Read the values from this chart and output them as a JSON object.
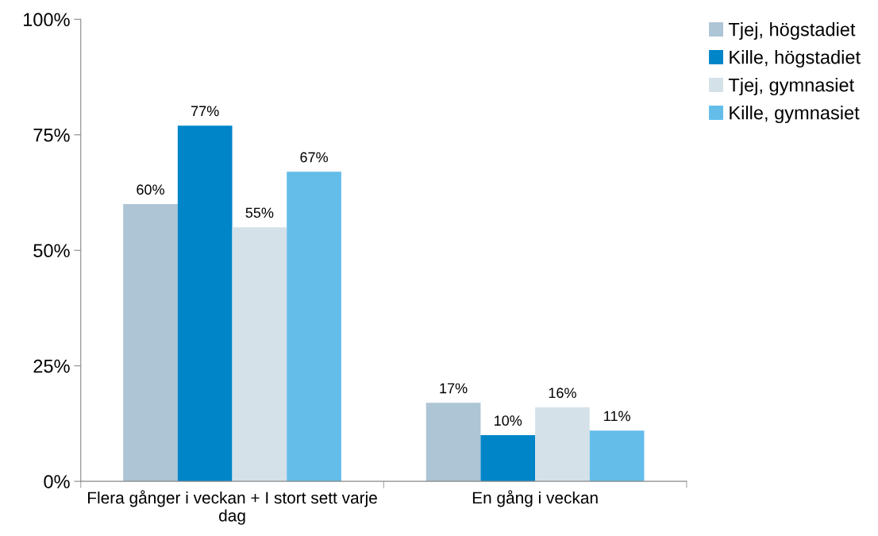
{
  "chart_data": {
    "type": "bar",
    "categories": [
      "Flera gånger i veckan + I stort sett varje dag",
      "En gång i veckan"
    ],
    "series": [
      {
        "name": "Tjej, högstadiet",
        "color": "#adc5d4",
        "values": [
          60,
          17
        ],
        "value_labels": [
          "60%",
          "17%"
        ]
      },
      {
        "name": "Kille, högstadiet",
        "color": "#0085c8",
        "values": [
          77,
          10
        ],
        "value_labels": [
          "77%",
          "10%"
        ]
      },
      {
        "name": "Tjej, gymnasiet",
        "color": "#d5e1e8",
        "values": [
          55,
          16
        ],
        "value_labels": [
          "55%",
          "16%"
        ]
      },
      {
        "name": "Kille, gymnasiet",
        "color": "#63bde8",
        "values": [
          67,
          11
        ],
        "value_labels": [
          "67%",
          "11%"
        ]
      }
    ],
    "ylim": [
      0,
      100
    ],
    "yticks": [
      {
        "value": 0,
        "label": "0%"
      },
      {
        "value": 25,
        "label": "25%"
      },
      {
        "value": 50,
        "label": "50%"
      },
      {
        "value": 75,
        "label": "75%"
      },
      {
        "value": 100,
        "label": "100%"
      }
    ],
    "grid": false,
    "legend": "top right"
  }
}
